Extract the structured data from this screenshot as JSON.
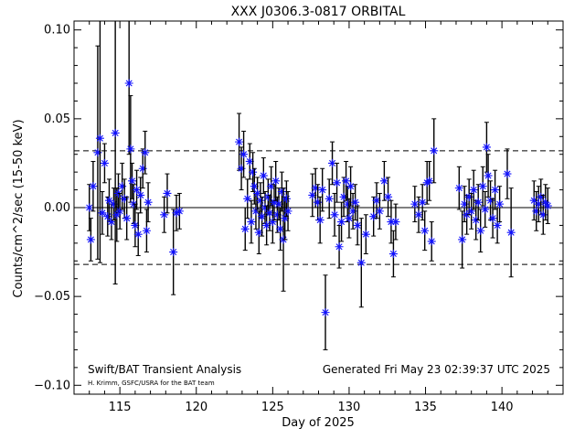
{
  "chart_data": {
    "type": "scatter",
    "title": "XXX J0306.3-0817 ORBITAL",
    "xlabel": "Day of 2025",
    "ylabel": "Counts/cm^2/sec (15-50 keV)",
    "xlim": [
      112,
      144
    ],
    "ylim": [
      -0.105,
      0.105
    ],
    "x_ticks": [
      115,
      120,
      125,
      130,
      135,
      140
    ],
    "x_tick_labels": [
      "115",
      "120",
      "125",
      "130",
      "135",
      "140"
    ],
    "y_ticks": [
      -0.1,
      -0.05,
      0.0,
      0.05,
      0.1
    ],
    "y_tick_labels": [
      "−0.10",
      "−0.05",
      "0.00",
      "0.05",
      "0.10"
    ],
    "reference_lines": [
      {
        "y": 0.0,
        "style": "solid"
      },
      {
        "y": 0.032,
        "style": "dashed"
      },
      {
        "y": -0.032,
        "style": "dashed"
      }
    ],
    "marker_color": "#1010ff",
    "annotations": {
      "left": "Swift/BAT Transient Analysis",
      "left_small": "H. Krimm, GSFC/USRA for the BAT team",
      "right": "Generated Fri May 23 02:39:37 UTC 2025"
    },
    "series": [
      {
        "points": [
          {
            "x": 113.0,
            "y": 0.0,
            "err": 0.013
          },
          {
            "x": 113.1,
            "y": -0.018,
            "err": 0.012
          },
          {
            "x": 113.25,
            "y": 0.012,
            "err": 0.014
          },
          {
            "x": 113.55,
            "y": 0.031,
            "err": 0.06
          },
          {
            "x": 113.7,
            "y": 0.039,
            "err": 0.07
          },
          {
            "x": 113.85,
            "y": -0.003,
            "err": 0.012
          },
          {
            "x": 114.0,
            "y": 0.025,
            "err": 0.011
          },
          {
            "x": 114.2,
            "y": -0.005,
            "err": 0.011
          },
          {
            "x": 114.3,
            "y": 0.004,
            "err": 0.012
          },
          {
            "x": 114.45,
            "y": -0.008,
            "err": 0.01
          },
          {
            "x": 114.6,
            "y": 0.002,
            "err": 0.009
          },
          {
            "x": 114.7,
            "y": 0.042,
            "err": 0.085
          },
          {
            "x": 114.8,
            "y": -0.004,
            "err": 0.015
          },
          {
            "x": 114.9,
            "y": 0.008,
            "err": 0.011
          },
          {
            "x": 115.0,
            "y": -0.002,
            "err": 0.01
          },
          {
            "x": 115.15,
            "y": 0.012,
            "err": 0.013
          },
          {
            "x": 115.3,
            "y": 0.005,
            "err": 0.011
          },
          {
            "x": 115.45,
            "y": -0.006,
            "err": 0.012
          },
          {
            "x": 115.6,
            "y": 0.07,
            "err": 0.04
          },
          {
            "x": 115.7,
            "y": 0.033,
            "err": 0.03
          },
          {
            "x": 115.8,
            "y": 0.015,
            "err": 0.01
          },
          {
            "x": 115.9,
            "y": 0.002,
            "err": 0.011
          },
          {
            "x": 116.0,
            "y": -0.01,
            "err": 0.012
          },
          {
            "x": 116.1,
            "y": 0.01,
            "err": 0.011
          },
          {
            "x": 116.2,
            "y": -0.015,
            "err": 0.012
          },
          {
            "x": 116.35,
            "y": 0.007,
            "err": 0.01
          },
          {
            "x": 116.5,
            "y": 0.022,
            "err": 0.011
          },
          {
            "x": 116.65,
            "y": 0.031,
            "err": 0.012
          },
          {
            "x": 116.75,
            "y": -0.013,
            "err": 0.012
          },
          {
            "x": 116.85,
            "y": 0.003,
            "err": 0.011
          },
          {
            "x": 117.9,
            "y": -0.004,
            "err": 0.01
          },
          {
            "x": 118.1,
            "y": 0.008,
            "err": 0.011
          },
          {
            "x": 118.5,
            "y": -0.025,
            "err": 0.024
          },
          {
            "x": 118.7,
            "y": -0.003,
            "err": 0.01
          },
          {
            "x": 118.9,
            "y": -0.002,
            "err": 0.01
          },
          {
            "x": 122.8,
            "y": 0.037,
            "err": 0.016
          },
          {
            "x": 122.95,
            "y": 0.022,
            "err": 0.012
          },
          {
            "x": 123.1,
            "y": 0.03,
            "err": 0.013
          },
          {
            "x": 123.2,
            "y": -0.012,
            "err": 0.012
          },
          {
            "x": 123.35,
            "y": 0.005,
            "err": 0.011
          },
          {
            "x": 123.5,
            "y": 0.026,
            "err": 0.01
          },
          {
            "x": 123.6,
            "y": -0.008,
            "err": 0.012
          },
          {
            "x": 123.7,
            "y": 0.02,
            "err": 0.011
          },
          {
            "x": 123.8,
            "y": 0.012,
            "err": 0.01
          },
          {
            "x": 123.9,
            "y": -0.002,
            "err": 0.01
          },
          {
            "x": 124.0,
            "y": 0.008,
            "err": 0.009
          },
          {
            "x": 124.1,
            "y": -0.014,
            "err": 0.012
          },
          {
            "x": 124.2,
            "y": 0.004,
            "err": 0.01
          },
          {
            "x": 124.3,
            "y": -0.005,
            "err": 0.011
          },
          {
            "x": 124.4,
            "y": 0.018,
            "err": 0.01
          },
          {
            "x": 124.5,
            "y": 0.0,
            "err": 0.009
          },
          {
            "x": 124.6,
            "y": -0.01,
            "err": 0.011
          },
          {
            "x": 124.7,
            "y": 0.006,
            "err": 0.01
          },
          {
            "x": 124.8,
            "y": -0.003,
            "err": 0.01
          },
          {
            "x": 124.9,
            "y": 0.012,
            "err": 0.011
          },
          {
            "x": 125.0,
            "y": -0.008,
            "err": 0.012
          },
          {
            "x": 125.1,
            "y": 0.003,
            "err": 0.01
          },
          {
            "x": 125.2,
            "y": 0.015,
            "err": 0.011
          },
          {
            "x": 125.3,
            "y": -0.004,
            "err": 0.01
          },
          {
            "x": 125.4,
            "y": 0.002,
            "err": 0.009
          },
          {
            "x": 125.5,
            "y": -0.012,
            "err": 0.012
          },
          {
            "x": 125.6,
            "y": 0.009,
            "err": 0.011
          },
          {
            "x": 125.7,
            "y": -0.018,
            "err": 0.029
          },
          {
            "x": 125.8,
            "y": -0.006,
            "err": 0.012
          },
          {
            "x": 125.9,
            "y": 0.005,
            "err": 0.01
          },
          {
            "x": 126.0,
            "y": -0.002,
            "err": 0.011
          },
          {
            "x": 127.6,
            "y": 0.007,
            "err": 0.012
          },
          {
            "x": 127.8,
            "y": 0.011,
            "err": 0.011
          },
          {
            "x": 127.95,
            "y": 0.003,
            "err": 0.01
          },
          {
            "x": 128.1,
            "y": -0.007,
            "err": 0.013
          },
          {
            "x": 128.25,
            "y": 0.01,
            "err": 0.012
          },
          {
            "x": 128.45,
            "y": -0.059,
            "err": 0.021
          },
          {
            "x": 128.7,
            "y": 0.005,
            "err": 0.011
          },
          {
            "x": 128.9,
            "y": 0.025,
            "err": 0.012
          },
          {
            "x": 129.05,
            "y": -0.004,
            "err": 0.012
          },
          {
            "x": 129.2,
            "y": 0.014,
            "err": 0.011
          },
          {
            "x": 129.35,
            "y": -0.022,
            "err": 0.012
          },
          {
            "x": 129.5,
            "y": -0.008,
            "err": 0.011
          },
          {
            "x": 129.65,
            "y": 0.006,
            "err": 0.011
          },
          {
            "x": 129.8,
            "y": 0.015,
            "err": 0.011
          },
          {
            "x": 129.9,
            "y": 0.002,
            "err": 0.01
          },
          {
            "x": 130.0,
            "y": -0.006,
            "err": 0.011
          },
          {
            "x": 130.1,
            "y": 0.012,
            "err": 0.011
          },
          {
            "x": 130.25,
            "y": -0.002,
            "err": 0.01
          },
          {
            "x": 130.4,
            "y": 0.003,
            "err": 0.01
          },
          {
            "x": 130.55,
            "y": -0.01,
            "err": 0.011
          },
          {
            "x": 130.8,
            "y": -0.031,
            "err": 0.025
          },
          {
            "x": 131.1,
            "y": -0.015,
            "err": 0.011
          },
          {
            "x": 131.6,
            "y": -0.005,
            "err": 0.011
          },
          {
            "x": 131.8,
            "y": 0.004,
            "err": 0.01
          },
          {
            "x": 132.0,
            "y": -0.002,
            "err": 0.01
          },
          {
            "x": 132.3,
            "y": 0.015,
            "err": 0.011
          },
          {
            "x": 132.55,
            "y": 0.006,
            "err": 0.011
          },
          {
            "x": 132.75,
            "y": -0.008,
            "err": 0.012
          },
          {
            "x": 132.9,
            "y": -0.026,
            "err": 0.013
          },
          {
            "x": 133.05,
            "y": -0.008,
            "err": 0.01
          },
          {
            "x": 134.3,
            "y": 0.002,
            "err": 0.01
          },
          {
            "x": 134.55,
            "y": -0.004,
            "err": 0.01
          },
          {
            "x": 134.8,
            "y": 0.003,
            "err": 0.01
          },
          {
            "x": 134.95,
            "y": -0.013,
            "err": 0.011
          },
          {
            "x": 135.1,
            "y": 0.014,
            "err": 0.012
          },
          {
            "x": 135.25,
            "y": 0.015,
            "err": 0.011
          },
          {
            "x": 135.4,
            "y": -0.019,
            "err": 0.011
          },
          {
            "x": 135.55,
            "y": 0.032,
            "err": 0.018
          },
          {
            "x": 137.2,
            "y": 0.011,
            "err": 0.012
          },
          {
            "x": 137.4,
            "y": -0.018,
            "err": 0.016
          },
          {
            "x": 137.55,
            "y": 0.002,
            "err": 0.01
          },
          {
            "x": 137.7,
            "y": -0.004,
            "err": 0.011
          },
          {
            "x": 137.85,
            "y": 0.006,
            "err": 0.01
          },
          {
            "x": 138.0,
            "y": -0.002,
            "err": 0.01
          },
          {
            "x": 138.15,
            "y": 0.01,
            "err": 0.011
          },
          {
            "x": 138.3,
            "y": -0.007,
            "err": 0.011
          },
          {
            "x": 138.45,
            "y": 0.003,
            "err": 0.01
          },
          {
            "x": 138.6,
            "y": -0.013,
            "err": 0.012
          },
          {
            "x": 138.75,
            "y": 0.012,
            "err": 0.011
          },
          {
            "x": 138.9,
            "y": -0.001,
            "err": 0.01
          },
          {
            "x": 139.0,
            "y": 0.034,
            "err": 0.014
          },
          {
            "x": 139.1,
            "y": 0.018,
            "err": 0.012
          },
          {
            "x": 139.25,
            "y": 0.004,
            "err": 0.011
          },
          {
            "x": 139.4,
            "y": -0.006,
            "err": 0.011
          },
          {
            "x": 139.55,
            "y": 0.01,
            "err": 0.011
          },
          {
            "x": 139.7,
            "y": -0.01,
            "err": 0.01
          },
          {
            "x": 139.85,
            "y": 0.002,
            "err": 0.01
          },
          {
            "x": 140.35,
            "y": 0.019,
            "err": 0.014
          },
          {
            "x": 140.6,
            "y": -0.014,
            "err": 0.025
          },
          {
            "x": 142.1,
            "y": 0.004,
            "err": 0.011
          },
          {
            "x": 142.25,
            "y": -0.002,
            "err": 0.011
          },
          {
            "x": 142.4,
            "y": 0.002,
            "err": 0.01
          },
          {
            "x": 142.55,
            "y": 0.006,
            "err": 0.01
          },
          {
            "x": 142.7,
            "y": -0.004,
            "err": 0.011
          },
          {
            "x": 142.85,
            "y": 0.003,
            "err": 0.01
          },
          {
            "x": 143.0,
            "y": 0.001,
            "err": 0.01
          }
        ]
      }
    ]
  }
}
